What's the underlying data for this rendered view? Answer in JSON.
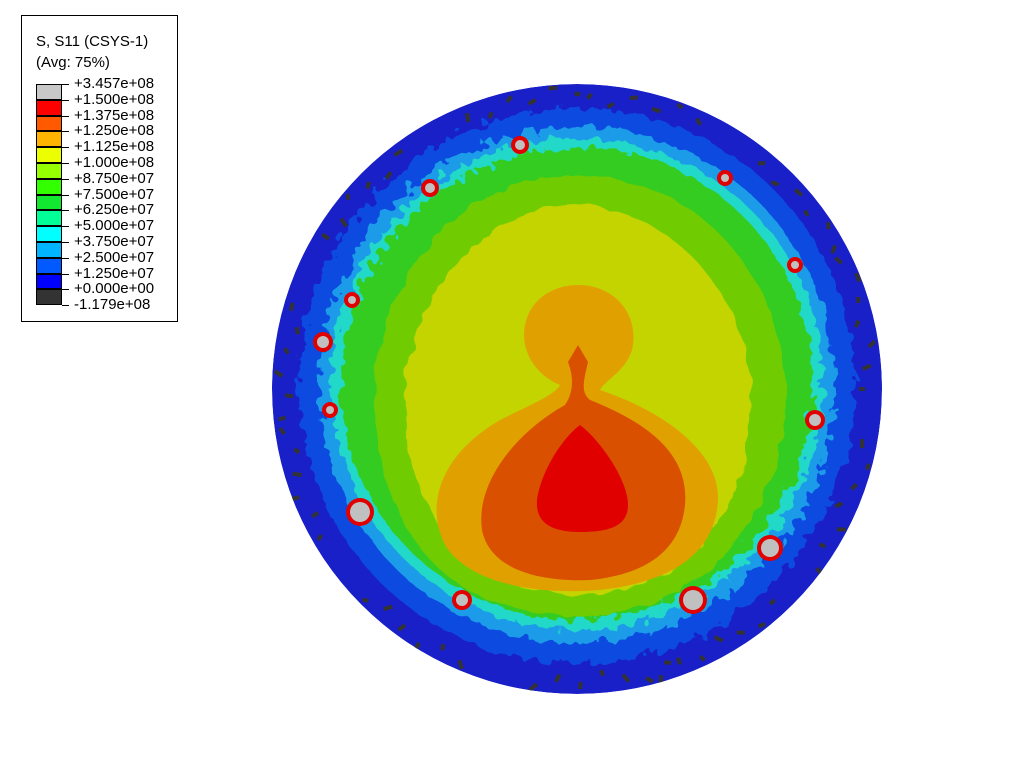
{
  "legend": {
    "title_line1": "S, S11 (CSYS-1)",
    "title_line2": "(Avg: 75%)",
    "values": [
      "+3.457e+08",
      "+1.500e+08",
      "+1.375e+08",
      "+1.250e+08",
      "+1.125e+08",
      "+1.000e+08",
      "+8.750e+07",
      "+7.500e+07",
      "+6.250e+07",
      "+5.000e+07",
      "+3.750e+07",
      "+2.500e+07",
      "+1.250e+07",
      "+0.000e+00",
      "-1.179e+08"
    ],
    "colors": [
      "#c8c8c8",
      "#ff0000",
      "#ff5a00",
      "#ffb400",
      "#ebff00",
      "#96ff00",
      "#32ff00",
      "#12e830",
      "#00ff96",
      "#00ffff",
      "#00b4ff",
      "#005aff",
      "#0000ff",
      "#333333"
    ]
  },
  "plot_colors": {
    "outer": "#1a20c8",
    "blue": "#0a4ce0",
    "lightblue": "#1a9ce8",
    "cyan": "#20d8c8",
    "green": "#34cc20",
    "yellowgreen": "#70cc00",
    "yellow": "#c4d400",
    "orange": "#e0a000",
    "darkorange": "#d85000",
    "red": "#e00000",
    "gray": "#c0c0c0",
    "dark": "#333333"
  }
}
